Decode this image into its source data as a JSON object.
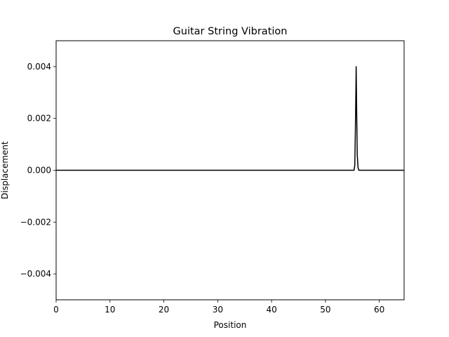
{
  "chart_data": {
    "type": "line",
    "title": "Guitar String Vibration",
    "xlabel": "Position",
    "ylabel": "Displacement",
    "xlim": [
      0,
      64.6
    ],
    "ylim": [
      -0.005,
      0.005
    ],
    "xticks": [
      0,
      10,
      20,
      30,
      40,
      50,
      60
    ],
    "xtick_labels": [
      "0",
      "10",
      "20",
      "30",
      "40",
      "50",
      "60"
    ],
    "yticks": [
      -0.004,
      -0.002,
      0.0,
      0.002,
      0.004
    ],
    "ytick_labels": [
      "−0.004",
      "−0.002",
      "0.000",
      "0.002",
      "0.004"
    ],
    "grid": false,
    "series": [
      {
        "color": "#000000",
        "x": [
          0,
          55.3,
          55.45,
          55.6,
          55.7,
          55.8,
          55.9,
          56.05,
          56.2,
          64.6
        ],
        "y": [
          0,
          0,
          0.0002,
          0.0022,
          0.004,
          0.0022,
          0.0006,
          0.0001,
          0,
          0
        ]
      }
    ]
  }
}
